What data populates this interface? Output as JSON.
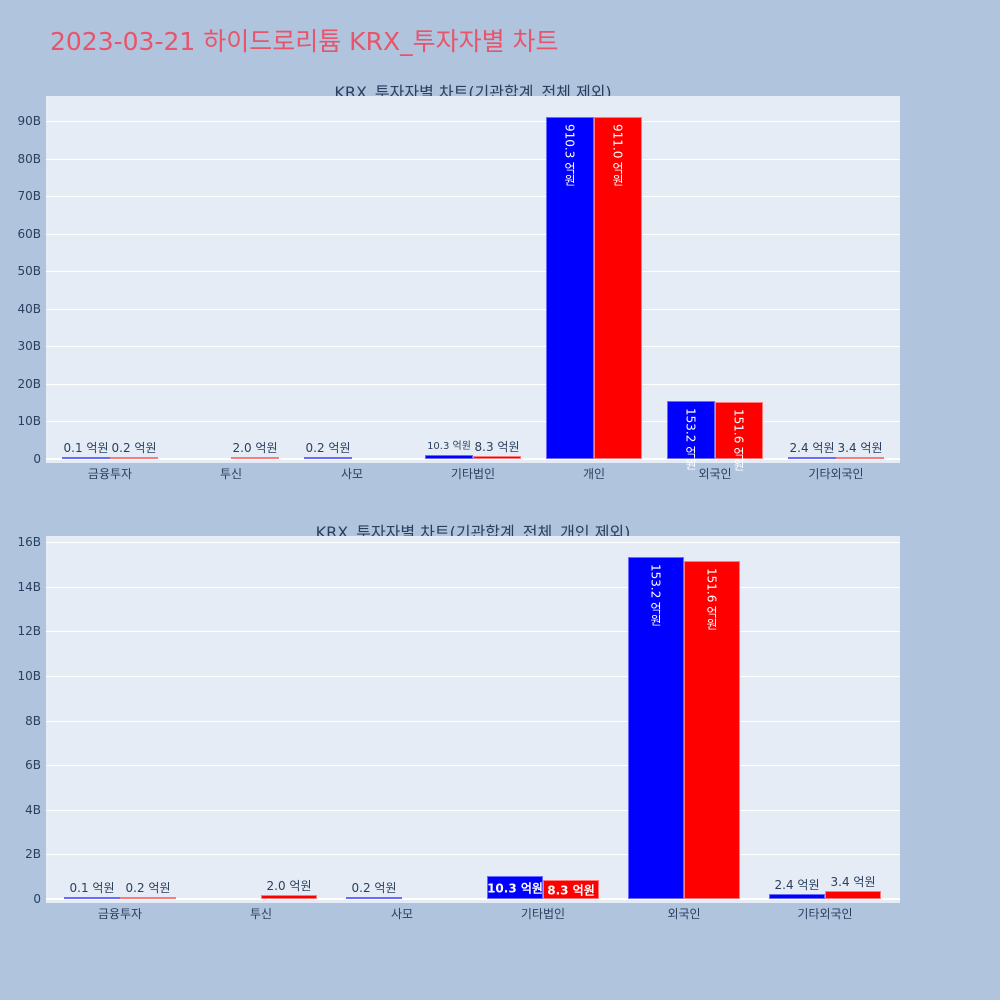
{
  "page": {
    "title": "2023-03-21 하이드로리튬 KRX_투자자별 차트",
    "title_color": "#e8546a",
    "background": "#b0c4de"
  },
  "colors": {
    "buy": "#0000ff",
    "sell": "#ff0000",
    "plot_bg": "#e5ecf6",
    "text": "#2a3f5f"
  },
  "chart_data": [
    {
      "type": "bar",
      "title": "KRX_투자자별 차트(기관합계_전체 제외)",
      "xlabel": "",
      "ylabel": "",
      "ylim": [
        0,
        97
      ],
      "yticks": [
        "0",
        "10B",
        "20B",
        "30B",
        "40B",
        "50B",
        "60B",
        "70B",
        "80B",
        "90B"
      ],
      "grid": true,
      "legend": "none",
      "categories": [
        "금융투자",
        "투신",
        "사모",
        "기타법인",
        "개인",
        "외국인",
        "기타외국인"
      ],
      "series": [
        {
          "name": "buy",
          "color": "#0000ff",
          "values": [
            0.01,
            0,
            0.02,
            1.03,
            91.03,
            15.32,
            0.24
          ],
          "labels": [
            "0.1 억원",
            "",
            "0.2 억원",
            "10.3 억원",
            "910.3 억원",
            "153.2 억원",
            "2.4 억원"
          ]
        },
        {
          "name": "sell",
          "color": "#ff0000",
          "values": [
            0.02,
            0.2,
            0,
            0.83,
            91.1,
            15.16,
            0.34
          ],
          "labels": [
            "0.2 억원",
            "2.0 억원",
            "",
            "8.3 억원",
            "911.0 억원",
            "151.6 억원",
            "3.4 억원"
          ]
        }
      ],
      "units": "B (십억원)"
    },
    {
      "type": "bar",
      "title": "KRX_투자자별 차트(기관합계_전체_개인 제외)",
      "xlabel": "",
      "ylabel": "",
      "ylim": [
        0,
        16.2
      ],
      "yticks": [
        "0",
        "2B",
        "4B",
        "6B",
        "8B",
        "10B",
        "12B",
        "14B",
        "16B"
      ],
      "grid": true,
      "legend": "none",
      "categories": [
        "금융투자",
        "투신",
        "사모",
        "기타법인",
        "외국인",
        "기타외국인"
      ],
      "series": [
        {
          "name": "buy",
          "color": "#0000ff",
          "values": [
            0.01,
            0,
            0.02,
            1.03,
            15.32,
            0.24
          ],
          "labels": [
            "0.1 억원",
            "",
            "0.2 억원",
            "10.3 억원",
            "153.2 억원",
            "2.4 억원"
          ]
        },
        {
          "name": "sell",
          "color": "#ff0000",
          "values": [
            0.02,
            0.2,
            0,
            0.83,
            15.16,
            0.34
          ],
          "labels": [
            "0.2 억원",
            "2.0 억원",
            "",
            "8.3 억원",
            "151.6 억원",
            "3.4 억원"
          ]
        }
      ],
      "units": "B (십억원)"
    }
  ]
}
